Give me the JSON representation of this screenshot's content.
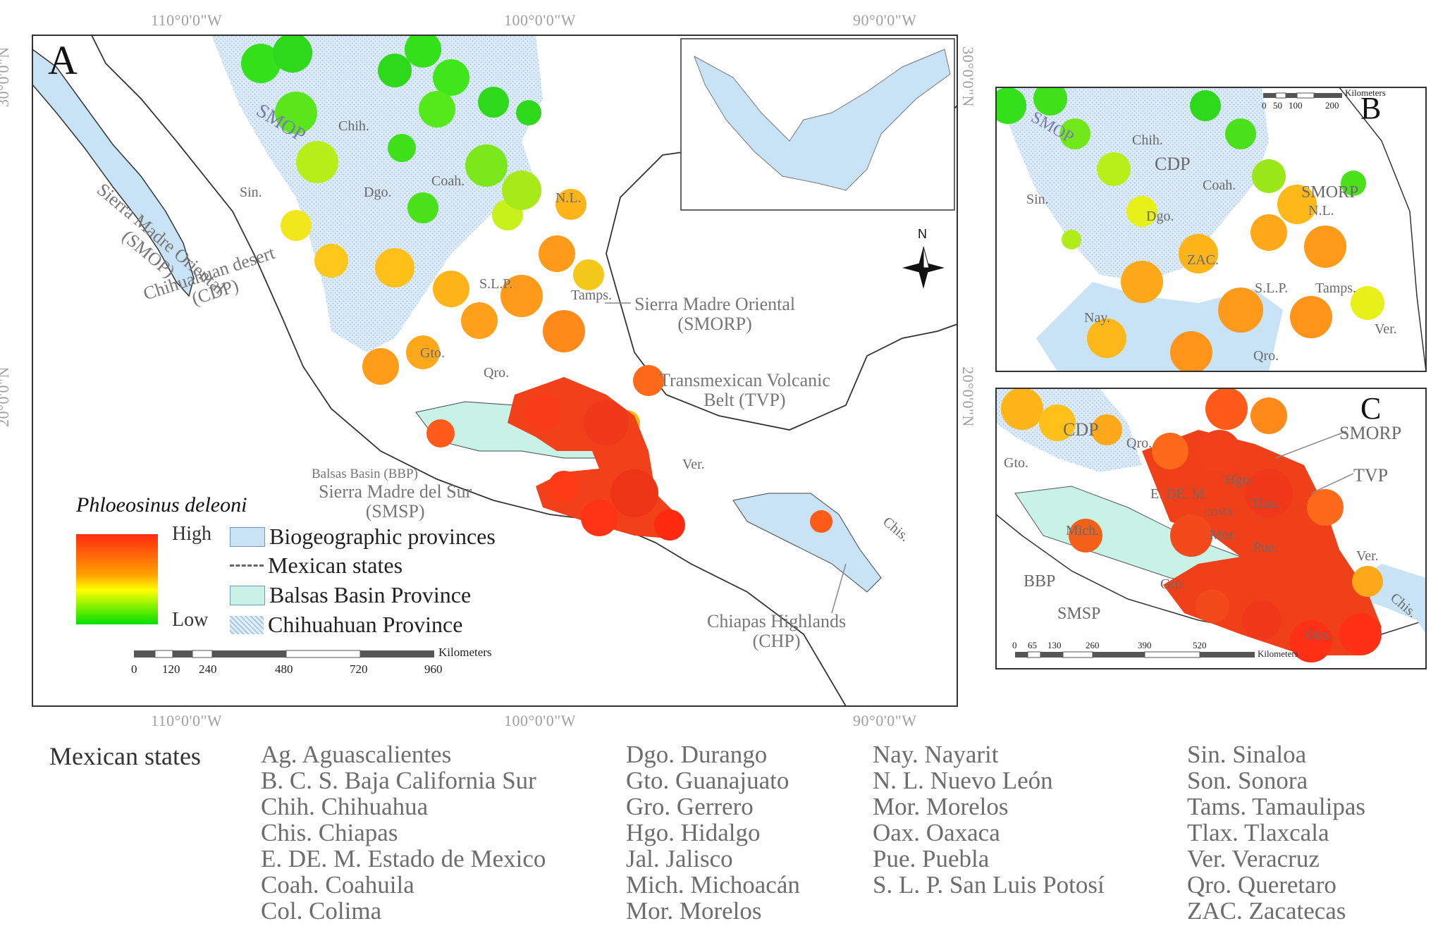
{
  "coordinates": {
    "top": [
      "110°0'0\"W",
      "100°0'0\"W",
      "90°0'0\"W"
    ],
    "bottom": [
      "110°0'0\"W",
      "100°0'0\"W",
      "90°0'0\"W"
    ],
    "left": [
      "30°0'0\"N",
      "20°0'0\"N"
    ],
    "right": [
      "30°0'0\"N",
      "20°0'0\"N"
    ]
  },
  "panels": {
    "a": "A",
    "b": "B",
    "c": "C"
  },
  "map_a_labels": {
    "smop_short": "SMOP",
    "smop_full_1": "Sierra Madre Oriental",
    "smop_full_2": "(SMOP)",
    "cdp_1": "Chihuahuan desert",
    "cdp_2": "(CDP)",
    "smorp_1": "Sierra Madre Oriental",
    "smorp_2": "(SMORP)",
    "tvp_1": "Transmexican Volcanic",
    "tvp_2": "Belt (TVP)",
    "bbp": "Balsas Basin (BBP)",
    "smsp_1": "Sierra Madre del Sur",
    "smsp_2": "(SMSP)",
    "chp_1": "Chiapas Highlands",
    "chp_2": "(CHP)",
    "states": [
      "Chih.",
      "Coah.",
      "Sin.",
      "Dgo.",
      "N.L.",
      "S.L.P.",
      "Tamps.",
      "Gto.",
      "Qro.",
      "Ver.",
      "Chis."
    ]
  },
  "map_b_labels": {
    "smop": "SMOP",
    "cdp": "CDP",
    "smorp": "SMORP",
    "states": [
      "Chih.",
      "Coah.",
      "Sin.",
      "Dgo.",
      "N.L.",
      "ZAC.",
      "S.L.P.",
      "Tamps.",
      "Nay.",
      "Ver.",
      "Qro."
    ],
    "scale_unit": "Kilometers",
    "scale_ticks": [
      "0",
      "50",
      "100",
      "200"
    ]
  },
  "map_c_labels": {
    "cdp": "CDP",
    "smorp": "SMORP",
    "tvp": "TVP",
    "bbp": "BBP",
    "smsp": "SMSP",
    "states": [
      "Qro.",
      "Gto.",
      "Hgo.",
      "E. DE. M",
      "Tlax.",
      "CDMX",
      "Mor.",
      "Pue.",
      "Mich.",
      "Gro.",
      "Ver.",
      "Oax.",
      "Chis."
    ],
    "scale_unit": "Kilometers",
    "scale_ticks": [
      "0",
      "65",
      "130",
      "260",
      "390",
      "520"
    ]
  },
  "legend": {
    "species": "Phloeosinus deleoni",
    "high": "High",
    "low": "Low",
    "items": [
      "Biogeographic provinces",
      "Mexican states",
      "Balsas Basin Province",
      "Chihuahuan Province"
    ]
  },
  "scale_a": {
    "unit": "Kilometers",
    "ticks": [
      "0",
      "120",
      "240",
      "480",
      "720",
      "960"
    ]
  },
  "north_label": "N",
  "colors": {
    "high": "#ff2a10",
    "mid": "#ffff00",
    "low": "#00e000",
    "province": "#c8e3f5",
    "balsas": "#c9f2e6",
    "chihuahuan": "#e2eef8"
  },
  "abbreviations": {
    "title": "Mexican states",
    "columns": [
      [
        "Ag. Aguascalientes",
        "B. C. S. Baja California Sur",
        "Chih. Chihuahua",
        "Chis. Chiapas",
        "E. DE. M. Estado de Mexico",
        "Coah. Coahuila",
        "Col. Colima"
      ],
      [
        "Dgo. Durango",
        "Gto. Guanajuato",
        "Gro. Gerrero",
        "Hgo. Hidalgo",
        "Jal. Jalisco",
        "Mich. Michoacán",
        "Mor. Morelos"
      ],
      [
        "Nay. Nayarit",
        "N. L. Nuevo León",
        "Mor. Morelos",
        "Oax. Oaxaca",
        "Pue. Puebla",
        "S. L. P. San Luis Potosí"
      ],
      [
        "Sin. Sinaloa",
        "Son. Sonora",
        "Tams. Tamaulipas",
        "Tlax. Tlaxcala",
        "Ver. Veracruz",
        "Qro. Queretaro",
        "ZAC. Zacatecas"
      ]
    ]
  }
}
